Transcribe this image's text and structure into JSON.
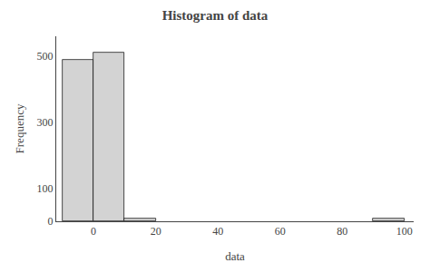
{
  "chart_data": {
    "type": "bar",
    "title": "Histogram of data",
    "xlabel": "data",
    "ylabel": "Frequency",
    "x": [
      -10,
      0,
      10,
      90
    ],
    "widths": [
      10,
      10,
      10,
      10
    ],
    "values": [
      490,
      510,
      8,
      8
    ],
    "color": "#d3d3d3",
    "xlim": [
      -12,
      103
    ],
    "xticks": [
      0,
      20,
      40,
      60,
      80,
      100
    ],
    "ylim": [
      0,
      560
    ],
    "yticks": [
      0,
      100,
      300,
      500
    ],
    "grid": false
  }
}
